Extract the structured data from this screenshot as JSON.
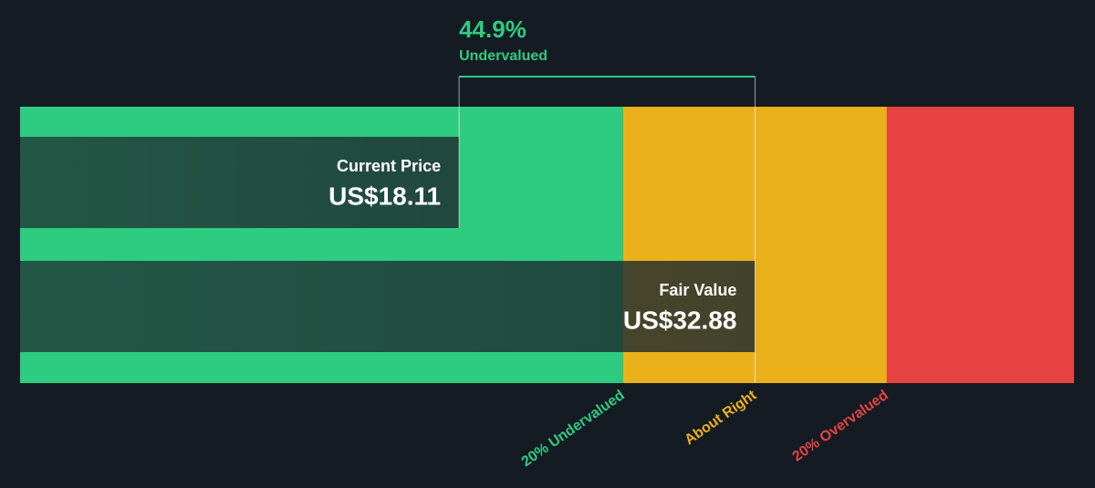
{
  "chart_data": {
    "type": "valuation",
    "difference": {
      "value": 44.9,
      "label": "44.9%",
      "status": "Undervalued"
    },
    "categories": [
      "Current Price",
      "Fair Value"
    ],
    "values": [
      18.11,
      32.88
    ],
    "value_labels": [
      "US$18.11",
      "US$32.88"
    ],
    "xlim": [
      -3.8,
      48.8
    ],
    "zones": [
      {
        "name": "20% Undervalued",
        "color": "#2ecc80",
        "end": 26.3
      },
      {
        "name": "About Right",
        "color": "#ebb11b",
        "end": 39.46
      },
      {
        "name": "20% Overvalued",
        "color": "#e64242"
      }
    ]
  }
}
